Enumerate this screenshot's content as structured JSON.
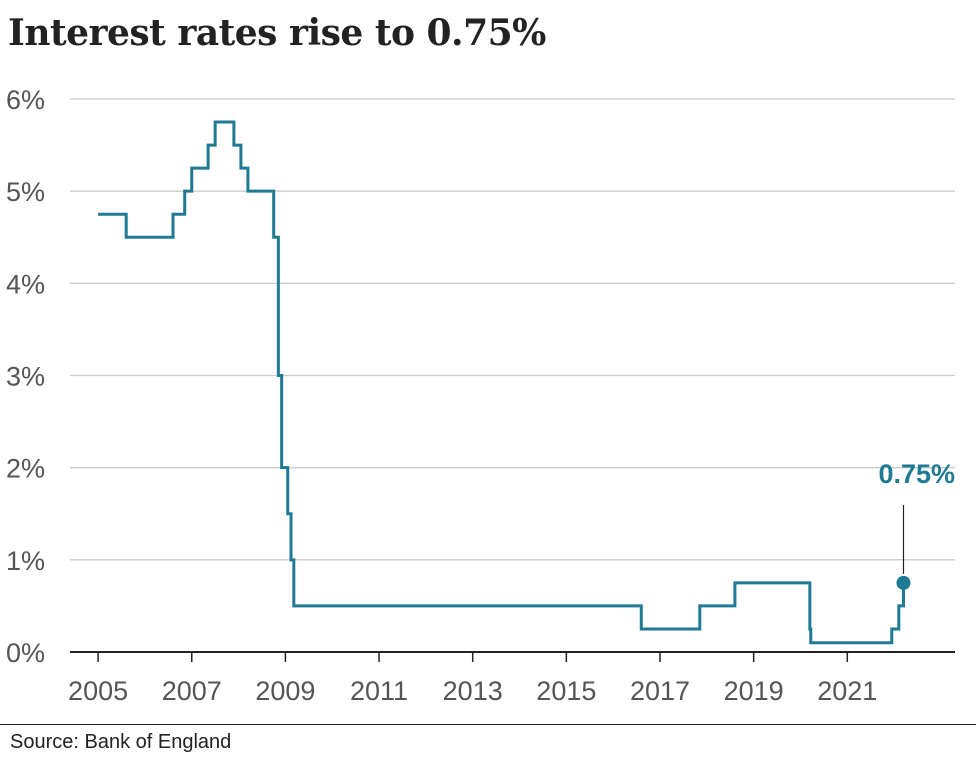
{
  "title": "Interest rates rise to 0.75%",
  "source": "Source: Bank of England",
  "colors": {
    "line": "#1f7a93",
    "grid": "#cccccc",
    "axis": "#222222",
    "tick_text": "#555555"
  },
  "chart_data": {
    "type": "line",
    "step": true,
    "title": "Interest rates rise to 0.75%",
    "xlabel": "",
    "ylabel": "",
    "xlim": [
      2004.4,
      2023.3
    ],
    "ylim": [
      0,
      6
    ],
    "grid": true,
    "x_ticks": [
      2005,
      2007,
      2009,
      2011,
      2013,
      2015,
      2017,
      2019,
      2021
    ],
    "x_tick_labels": [
      "2005",
      "2007",
      "2009",
      "2011",
      "2013",
      "2015",
      "2017",
      "2019",
      "2021"
    ],
    "y_ticks": [
      0,
      1,
      2,
      3,
      4,
      5,
      6
    ],
    "y_tick_labels": [
      "0%",
      "1%",
      "2%",
      "3%",
      "4%",
      "5%",
      "6%"
    ],
    "series": [
      {
        "points": [
          [
            2005.0,
            4.75
          ],
          [
            2005.6,
            4.5
          ],
          [
            2006.6,
            4.75
          ],
          [
            2006.85,
            5.0
          ],
          [
            2007.0,
            5.25
          ],
          [
            2007.35,
            5.5
          ],
          [
            2007.5,
            5.75
          ],
          [
            2007.9,
            5.5
          ],
          [
            2008.05,
            5.25
          ],
          [
            2008.2,
            5.0
          ],
          [
            2008.75,
            4.5
          ],
          [
            2008.85,
            3.0
          ],
          [
            2008.92,
            2.0
          ],
          [
            2009.05,
            1.5
          ],
          [
            2009.12,
            1.0
          ],
          [
            2009.18,
            0.5
          ],
          [
            2016.6,
            0.25
          ],
          [
            2017.85,
            0.5
          ],
          [
            2018.6,
            0.75
          ],
          [
            2020.2,
            0.25
          ],
          [
            2020.22,
            0.1
          ],
          [
            2021.95,
            0.25
          ],
          [
            2022.1,
            0.5
          ],
          [
            2022.2,
            0.75
          ]
        ]
      }
    ],
    "annotation": {
      "text": "0.75%",
      "x": 2022.2,
      "y": 0.75
    }
  }
}
